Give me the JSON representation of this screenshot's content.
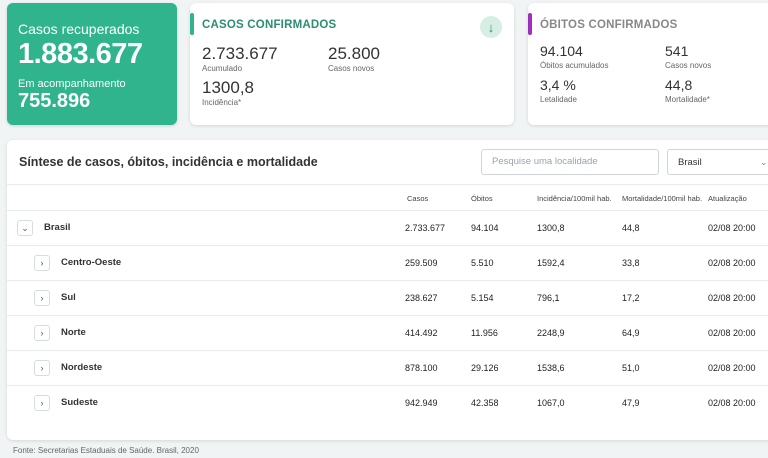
{
  "recovered": {
    "label": "Casos recuperados",
    "value": "1.883.677",
    "sub_label": "Em acompanhamento",
    "sub_value": "755.896",
    "color": "#2fb48d"
  },
  "confirmed": {
    "title": "CASOS CONFIRMADOS",
    "accent": "#2fb48d",
    "accumulated_value": "2.733.677",
    "accumulated_label": "Acumulado",
    "new_value": "25.800",
    "new_label": "Casos novos",
    "incidence_value": "1300,8",
    "incidence_label": "Incidência*",
    "down_icon": "arrow-down-icon"
  },
  "deaths": {
    "title": "ÓBITOS CONFIRMADOS",
    "accent": "#a02fbd",
    "accumulated_value": "94.104",
    "accumulated_label": "Óbitos acumulados",
    "new_value": "541",
    "new_label": "Casos novos",
    "lethality_value": "3,4 %",
    "lethality_label": "Letalidade",
    "mortality_value": "44,8",
    "mortality_label": "Mortalidade*"
  },
  "table": {
    "title": "Síntese de casos, óbitos, incidência e mortalidade",
    "search_placeholder": "Pesquise uma localidade",
    "select_value": "Brasil",
    "columns": [
      "Casos",
      "Óbitos",
      "Incidência/100mil hab.",
      "Mortalidade/100mil hab.",
      "Atualização"
    ],
    "rows": [
      {
        "name": "Brasil",
        "casos": "2.733.677",
        "obitos": "94.104",
        "incidencia": "1300,8",
        "mortalidade": "44,8",
        "atualizacao": "02/08 20:00",
        "expanded": true
      },
      {
        "name": "Centro-Oeste",
        "casos": "259.509",
        "obitos": "5.510",
        "incidencia": "1592,4",
        "mortalidade": "33,8",
        "atualizacao": "02/08 20:00"
      },
      {
        "name": "Sul",
        "casos": "238.627",
        "obitos": "5.154",
        "incidencia": "796,1",
        "mortalidade": "17,2",
        "atualizacao": "02/08 20:00"
      },
      {
        "name": "Norte",
        "casos": "414.492",
        "obitos": "11.956",
        "incidencia": "2248,9",
        "mortalidade": "64,9",
        "atualizacao": "02/08 20:00"
      },
      {
        "name": "Nordeste",
        "casos": "878.100",
        "obitos": "29.126",
        "incidencia": "1538,6",
        "mortalidade": "51,0",
        "atualizacao": "02/08 20:00"
      },
      {
        "name": "Sudeste",
        "casos": "942.949",
        "obitos": "42.358",
        "incidencia": "1067,0",
        "mortalidade": "47,9",
        "atualizacao": "02/08 20:00"
      }
    ]
  },
  "footer": "Fonte: Secretarias Estaduais de Saúde. Brasil, 2020"
}
